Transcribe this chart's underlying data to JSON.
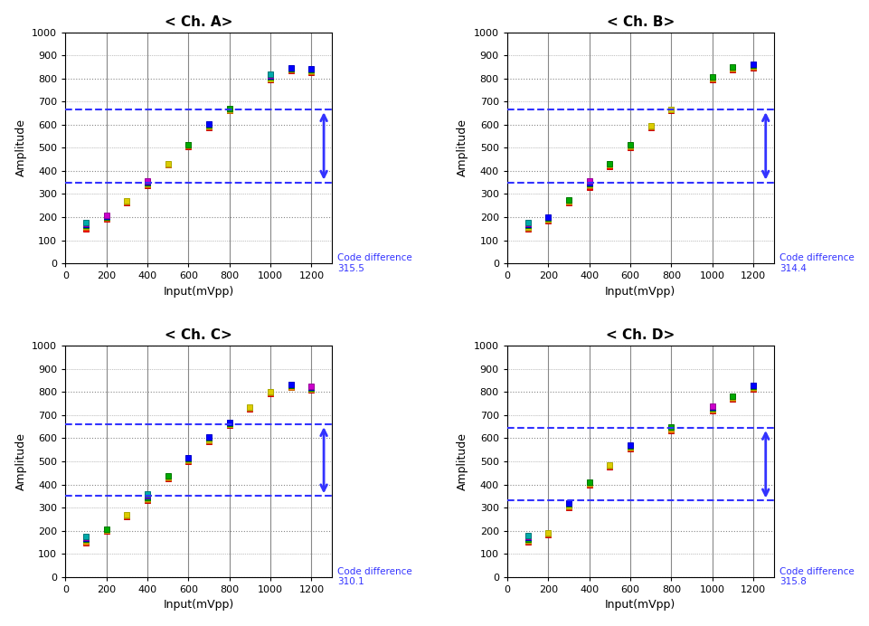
{
  "titles": [
    "< Ch. A>",
    "< Ch. B>",
    "< Ch. C>",
    "< Ch. D>"
  ],
  "xlabel": "Input(mVpp)",
  "ylabel": "Amplitude",
  "xlim": [
    0,
    1300
  ],
  "ylim": [
    0,
    1000
  ],
  "xticks": [
    0,
    200,
    400,
    600,
    800,
    1000,
    1200
  ],
  "yticks": [
    0,
    100,
    200,
    300,
    400,
    500,
    600,
    700,
    800,
    900,
    1000
  ],
  "code_differences": [
    "315.5",
    "314.4",
    "310.1",
    "315.8"
  ],
  "dashed_lines": [
    {
      "upper": 665,
      "lower": 350
    },
    {
      "upper": 665,
      "lower": 350
    },
    {
      "upper": 660,
      "lower": 350
    },
    {
      "upper": 645,
      "lower": 330
    }
  ],
  "colors": [
    "#FF0000",
    "#FF8800",
    "#DDDD00",
    "#00AA00",
    "#0000FF",
    "#FF00FF",
    "#00BBBB",
    "#8800CC"
  ],
  "data_A": {
    "points": [
      [
        100,
        150
      ],
      [
        100,
        155
      ],
      [
        100,
        160
      ],
      [
        100,
        165
      ],
      [
        100,
        168
      ],
      [
        100,
        172
      ],
      [
        100,
        176
      ],
      [
        200,
        192
      ],
      [
        200,
        195
      ],
      [
        200,
        198
      ],
      [
        200,
        200
      ],
      [
        200,
        203
      ],
      [
        200,
        206
      ],
      [
        300,
        263
      ],
      [
        300,
        267
      ],
      [
        300,
        270
      ],
      [
        400,
        335
      ],
      [
        400,
        340
      ],
      [
        400,
        345
      ],
      [
        400,
        348
      ],
      [
        400,
        352
      ],
      [
        400,
        356
      ],
      [
        500,
        425
      ],
      [
        500,
        428
      ],
      [
        500,
        432
      ],
      [
        600,
        505
      ],
      [
        600,
        508
      ],
      [
        600,
        512
      ],
      [
        600,
        515
      ],
      [
        700,
        588
      ],
      [
        700,
        592
      ],
      [
        700,
        596
      ],
      [
        700,
        600
      ],
      [
        700,
        604
      ],
      [
        800,
        660
      ],
      [
        800,
        663
      ],
      [
        800,
        666
      ],
      [
        800,
        669
      ],
      [
        1000,
        793
      ],
      [
        1000,
        797
      ],
      [
        1000,
        800
      ],
      [
        1000,
        805
      ],
      [
        1000,
        810
      ],
      [
        1000,
        815
      ],
      [
        1000,
        819
      ],
      [
        1100,
        833
      ],
      [
        1100,
        837
      ],
      [
        1100,
        840
      ],
      [
        1100,
        843
      ],
      [
        1100,
        846
      ],
      [
        1200,
        828
      ],
      [
        1200,
        832
      ],
      [
        1200,
        835
      ],
      [
        1200,
        838
      ],
      [
        1200,
        841
      ]
    ]
  },
  "data_B": {
    "points": [
      [
        100,
        148
      ],
      [
        100,
        153
      ],
      [
        100,
        158
      ],
      [
        100,
        163
      ],
      [
        100,
        167
      ],
      [
        100,
        171
      ],
      [
        100,
        175
      ],
      [
        200,
        185
      ],
      [
        200,
        189
      ],
      [
        200,
        193
      ],
      [
        200,
        197
      ],
      [
        200,
        201
      ],
      [
        300,
        263
      ],
      [
        300,
        268
      ],
      [
        300,
        272
      ],
      [
        300,
        276
      ],
      [
        400,
        330
      ],
      [
        400,
        335
      ],
      [
        400,
        340
      ],
      [
        400,
        345
      ],
      [
        400,
        350
      ],
      [
        400,
        355
      ],
      [
        500,
        420
      ],
      [
        500,
        425
      ],
      [
        500,
        428
      ],
      [
        500,
        432
      ],
      [
        600,
        500
      ],
      [
        600,
        504
      ],
      [
        600,
        508
      ],
      [
        600,
        512
      ],
      [
        700,
        588
      ],
      [
        700,
        592
      ],
      [
        700,
        595
      ],
      [
        800,
        660
      ],
      [
        800,
        664
      ],
      [
        800,
        667
      ],
      [
        1000,
        793
      ],
      [
        1000,
        797
      ],
      [
        1000,
        801
      ],
      [
        1000,
        805
      ],
      [
        1100,
        838
      ],
      [
        1100,
        842
      ],
      [
        1100,
        845
      ],
      [
        1100,
        848
      ],
      [
        1200,
        845
      ],
      [
        1200,
        849
      ],
      [
        1200,
        853
      ],
      [
        1200,
        857
      ],
      [
        1200,
        860
      ]
    ]
  },
  "data_C": {
    "points": [
      [
        100,
        148
      ],
      [
        100,
        153
      ],
      [
        100,
        158
      ],
      [
        100,
        163
      ],
      [
        100,
        168
      ],
      [
        100,
        172
      ],
      [
        100,
        176
      ],
      [
        200,
        198
      ],
      [
        200,
        201
      ],
      [
        200,
        204
      ],
      [
        200,
        207
      ],
      [
        300,
        263
      ],
      [
        300,
        267
      ],
      [
        300,
        271
      ],
      [
        400,
        330
      ],
      [
        400,
        335
      ],
      [
        400,
        340
      ],
      [
        400,
        345
      ],
      [
        400,
        350
      ],
      [
        400,
        355
      ],
      [
        400,
        358
      ],
      [
        500,
        425
      ],
      [
        500,
        429
      ],
      [
        500,
        432
      ],
      [
        500,
        436
      ],
      [
        600,
        500
      ],
      [
        600,
        505
      ],
      [
        600,
        509
      ],
      [
        600,
        513
      ],
      [
        600,
        517
      ],
      [
        700,
        588
      ],
      [
        700,
        592
      ],
      [
        700,
        596
      ],
      [
        700,
        600
      ],
      [
        700,
        604
      ],
      [
        800,
        655
      ],
      [
        800,
        659
      ],
      [
        800,
        662
      ],
      [
        800,
        666
      ],
      [
        800,
        670
      ],
      [
        900,
        728
      ],
      [
        900,
        732
      ],
      [
        900,
        736
      ],
      [
        1000,
        793
      ],
      [
        1000,
        797
      ],
      [
        1000,
        800
      ],
      [
        1100,
        820
      ],
      [
        1100,
        823
      ],
      [
        1100,
        827
      ],
      [
        1100,
        830
      ],
      [
        1100,
        833
      ],
      [
        1200,
        808
      ],
      [
        1200,
        812
      ],
      [
        1200,
        815
      ],
      [
        1200,
        818
      ],
      [
        1200,
        822
      ],
      [
        1200,
        825
      ]
    ]
  },
  "data_D": {
    "points": [
      [
        100,
        150
      ],
      [
        100,
        155
      ],
      [
        100,
        160
      ],
      [
        100,
        165
      ],
      [
        100,
        170
      ],
      [
        100,
        175
      ],
      [
        100,
        179
      ],
      [
        200,
        183
      ],
      [
        200,
        187
      ],
      [
        200,
        191
      ],
      [
        300,
        300
      ],
      [
        300,
        305
      ],
      [
        300,
        310
      ],
      [
        300,
        315
      ],
      [
        300,
        320
      ],
      [
        400,
        400
      ],
      [
        400,
        404
      ],
      [
        400,
        408
      ],
      [
        400,
        412
      ],
      [
        500,
        478
      ],
      [
        500,
        482
      ],
      [
        500,
        486
      ],
      [
        600,
        555
      ],
      [
        600,
        559
      ],
      [
        600,
        563
      ],
      [
        600,
        567
      ],
      [
        600,
        571
      ],
      [
        800,
        635
      ],
      [
        800,
        639
      ],
      [
        800,
        643
      ],
      [
        800,
        647
      ],
      [
        1000,
        718
      ],
      [
        1000,
        722
      ],
      [
        1000,
        726
      ],
      [
        1000,
        730
      ],
      [
        1000,
        734
      ],
      [
        1000,
        738
      ],
      [
        1100,
        770
      ],
      [
        1100,
        775
      ],
      [
        1100,
        779
      ],
      [
        1100,
        783
      ],
      [
        1200,
        812
      ],
      [
        1200,
        816
      ],
      [
        1200,
        820
      ],
      [
        1200,
        824
      ],
      [
        1200,
        828
      ]
    ]
  }
}
